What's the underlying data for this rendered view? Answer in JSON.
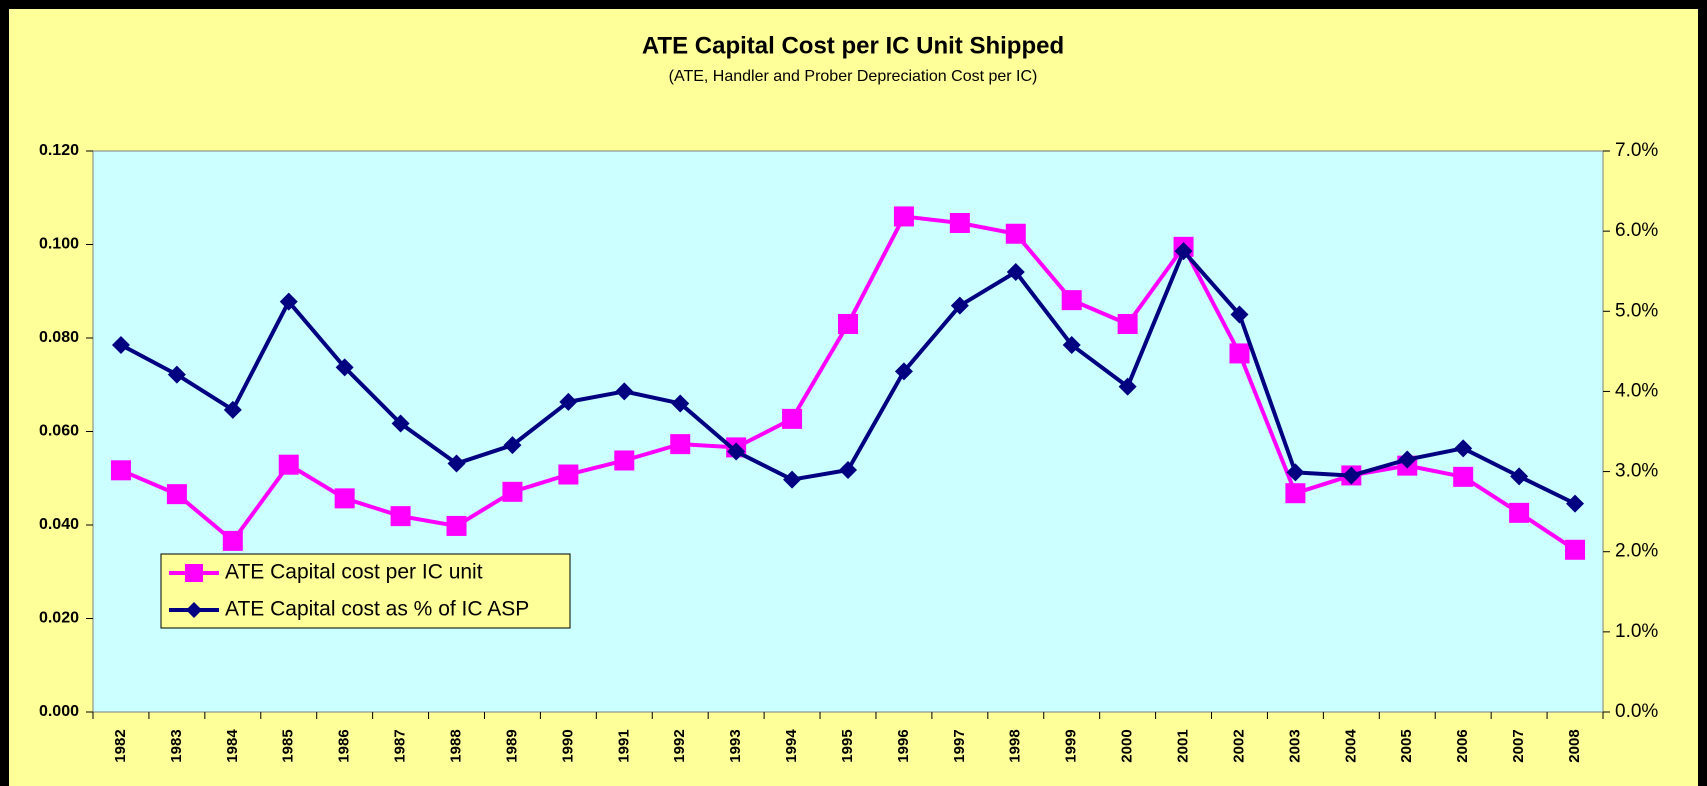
{
  "chart_data": {
    "type": "line",
    "title": "ATE Capital Cost per IC Unit Shipped",
    "subtitle": "(ATE, Handler and Prober Depreciation Cost per IC)",
    "categories": [
      "1982",
      "1983",
      "1984",
      "1985",
      "1986",
      "1987",
      "1988",
      "1989",
      "1990",
      "1991",
      "1992",
      "1993",
      "1994",
      "1995",
      "1996",
      "1997",
      "1998",
      "1999",
      "2000",
      "2001",
      "2002",
      "2003",
      "2004",
      "2005",
      "2006",
      "2007",
      "2008"
    ],
    "series": [
      {
        "name": "ATE Capital cost per IC unit",
        "color": "#ff00ff",
        "marker": "square",
        "values": [
          0.0517,
          0.0466,
          0.0366,
          0.0529,
          0.0457,
          0.0419,
          0.0398,
          0.0471,
          0.0508,
          0.0538,
          0.0573,
          0.0566,
          0.0627,
          0.083,
          0.106,
          0.1046,
          0.1023,
          0.0881,
          0.083,
          0.0995,
          0.0767,
          0.0468,
          0.0506,
          0.0527,
          0.0503,
          0.0426,
          0.0347
        ]
      },
      {
        "name": "ATE Capital cost as % of IC ASP",
        "color": "#000080",
        "marker": "diamond",
        "axis": "y2",
        "values": [
          4.58,
          4.21,
          3.77,
          5.12,
          4.3,
          3.6,
          3.1,
          3.33,
          3.87,
          4.0,
          3.85,
          3.25,
          2.9,
          3.02,
          4.25,
          5.07,
          5.49,
          4.58,
          4.06,
          5.75,
          4.96,
          2.99,
          2.95,
          3.15,
          3.29,
          2.94,
          2.6
        ]
      }
    ],
    "ylim": [
      0,
      0.12
    ],
    "yticks": [
      {
        "value": 0,
        "label": "0.000"
      },
      {
        "value": 0.02,
        "label": "0.020"
      },
      {
        "value": 0.04,
        "label": "0.040"
      },
      {
        "value": 0.06,
        "label": "0.060"
      },
      {
        "value": 0.08,
        "label": "0.080"
      },
      {
        "value": 0.1,
        "label": "0.100"
      },
      {
        "value": 0.12,
        "label": "0.120"
      }
    ],
    "y2lim": [
      0,
      7
    ],
    "y2ticks": [
      {
        "value": 0,
        "label": "0.0%"
      },
      {
        "value": 1,
        "label": "1.0%"
      },
      {
        "value": 2,
        "label": "2.0%"
      },
      {
        "value": 3,
        "label": "3.0%"
      },
      {
        "value": 4,
        "label": "4.0%"
      },
      {
        "value": 5,
        "label": "5.0%"
      },
      {
        "value": 6,
        "label": "6.0%"
      },
      {
        "value": 7,
        "label": "7.0%"
      }
    ],
    "legend": "lower-left"
  }
}
